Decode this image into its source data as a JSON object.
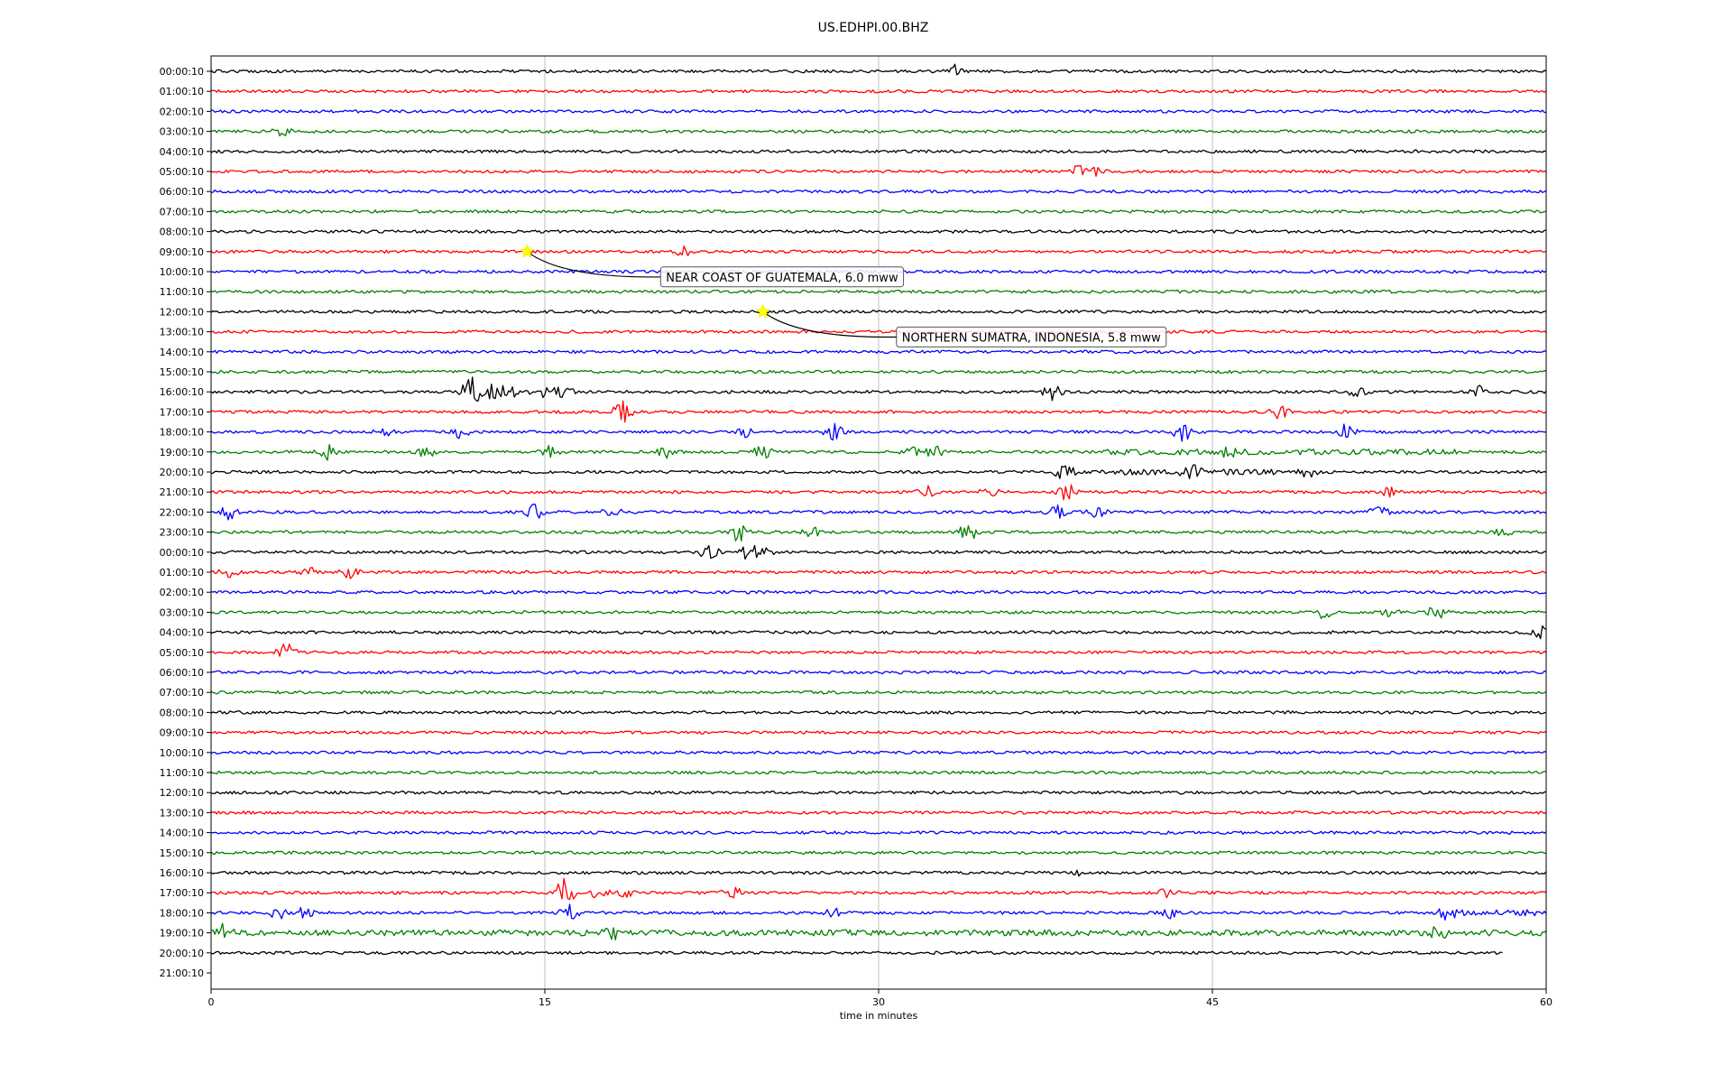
{
  "chart_data": {
    "type": "line",
    "title": "US.EDHPI.00.BHZ",
    "xlabel": "time in minutes",
    "ylabel": "",
    "xlim": [
      0,
      60
    ],
    "x_ticks": [
      "0",
      "15",
      "30",
      "45",
      "60"
    ],
    "x_tick_values": [
      0,
      15,
      30,
      45,
      60
    ],
    "grid": "vertical",
    "color_cycle": [
      "#000000",
      "#ff0000",
      "#0000ff",
      "#008000"
    ],
    "row_labels": [
      "00:00:10",
      "01:00:10",
      "02:00:10",
      "03:00:10",
      "04:00:10",
      "05:00:10",
      "06:00:10",
      "07:00:10",
      "08:00:10",
      "09:00:10",
      "10:00:10",
      "11:00:10",
      "12:00:10",
      "13:00:10",
      "14:00:10",
      "15:00:10",
      "16:00:10",
      "17:00:10",
      "18:00:10",
      "19:00:10",
      "20:00:10",
      "21:00:10",
      "22:00:10",
      "23:00:10",
      "00:00:10",
      "01:00:10",
      "02:00:10",
      "03:00:10",
      "04:00:10",
      "05:00:10",
      "06:00:10",
      "07:00:10",
      "08:00:10",
      "09:00:10",
      "10:00:10",
      "11:00:10",
      "12:00:10",
      "13:00:10",
      "14:00:10",
      "15:00:10",
      "16:00:10",
      "17:00:10",
      "18:00:10",
      "19:00:10",
      "20:00:10",
      "21:00:10"
    ],
    "trace_count": 45,
    "last_trace_end_minute": 58,
    "events": [
      {
        "row": 9,
        "minute": 14.2,
        "label": "NEAR COAST OF GUATEMALA, 6.0 mww",
        "marker_color": "#ffff00"
      },
      {
        "row": 12,
        "minute": 24.8,
        "label": "NORTHERN SUMATRA, INDONESIA, 5.8 mww",
        "marker_color": "#ffff00"
      }
    ],
    "bursts": [
      {
        "row": 0,
        "minute": 33.4,
        "amp": 0.6
      },
      {
        "row": 3,
        "minute": 3.2,
        "amp": 0.4
      },
      {
        "row": 5,
        "minute": 39.0,
        "amp": 0.6
      },
      {
        "row": 5,
        "minute": 40.0,
        "amp": 1.0
      },
      {
        "row": 9,
        "minute": 21.3,
        "amp": 0.4
      },
      {
        "row": 16,
        "minute": 11.7,
        "amp": 1.6
      },
      {
        "row": 16,
        "minute": 12.7,
        "amp": 0.8
      },
      {
        "row": 16,
        "minute": 13.3,
        "amp": 0.8
      },
      {
        "row": 16,
        "minute": 14.8,
        "amp": 0.6
      },
      {
        "row": 16,
        "minute": 15.8,
        "amp": 0.8
      },
      {
        "row": 16,
        "minute": 37.8,
        "amp": 0.8
      },
      {
        "row": 16,
        "minute": 51.5,
        "amp": 0.4
      },
      {
        "row": 16,
        "minute": 57.0,
        "amp": 0.6
      },
      {
        "row": 17,
        "minute": 18.5,
        "amp": 1.0
      },
      {
        "row": 17,
        "minute": 48.0,
        "amp": 0.7
      },
      {
        "row": 18,
        "minute": 7.8,
        "amp": 0.6
      },
      {
        "row": 18,
        "minute": 11.2,
        "amp": 0.7
      },
      {
        "row": 18,
        "minute": 24.0,
        "amp": 0.5
      },
      {
        "row": 18,
        "minute": 28.0,
        "amp": 0.7
      },
      {
        "row": 18,
        "minute": 43.7,
        "amp": 0.9
      },
      {
        "row": 18,
        "minute": 51.0,
        "amp": 0.8
      },
      {
        "row": 19,
        "minute": 5.2,
        "amp": 0.8
      },
      {
        "row": 19,
        "minute": 9.7,
        "amp": 0.5
      },
      {
        "row": 19,
        "minute": 15.2,
        "amp": 0.5
      },
      {
        "row": 19,
        "minute": 20.5,
        "amp": 0.5
      },
      {
        "row": 19,
        "minute": 24.8,
        "amp": 0.6
      },
      {
        "row": 19,
        "minute": 31.5,
        "amp": 0.5
      },
      {
        "row": 19,
        "minute": 32.5,
        "amp": 0.6
      },
      {
        "row": 19,
        "minute": 45.8,
        "amp": 0.6
      },
      {
        "row": 20,
        "minute": 38.4,
        "amp": 1.0
      },
      {
        "row": 20,
        "minute": 44.0,
        "amp": 0.6
      },
      {
        "row": 20,
        "minute": 49.3,
        "amp": 0.5
      },
      {
        "row": 21,
        "minute": 32.2,
        "amp": 0.6
      },
      {
        "row": 21,
        "minute": 35.0,
        "amp": 0.5
      },
      {
        "row": 21,
        "minute": 38.5,
        "amp": 0.9
      },
      {
        "row": 21,
        "minute": 53.0,
        "amp": 0.4
      },
      {
        "row": 22,
        "minute": 0.8,
        "amp": 0.7
      },
      {
        "row": 22,
        "minute": 14.5,
        "amp": 0.8
      },
      {
        "row": 22,
        "minute": 18.0,
        "amp": 0.5
      },
      {
        "row": 22,
        "minute": 38.0,
        "amp": 0.6
      },
      {
        "row": 22,
        "minute": 39.8,
        "amp": 0.5
      },
      {
        "row": 22,
        "minute": 52.5,
        "amp": 0.6
      },
      {
        "row": 23,
        "minute": 23.7,
        "amp": 0.9
      },
      {
        "row": 23,
        "minute": 27.0,
        "amp": 0.6
      },
      {
        "row": 23,
        "minute": 34.0,
        "amp": 0.9
      },
      {
        "row": 23,
        "minute": 58.0,
        "amp": 0.4
      },
      {
        "row": 24,
        "minute": 22.4,
        "amp": 0.8
      },
      {
        "row": 24,
        "minute": 24.2,
        "amp": 0.8
      },
      {
        "row": 24,
        "minute": 24.8,
        "amp": 0.6
      },
      {
        "row": 25,
        "minute": 0.8,
        "amp": 0.5
      },
      {
        "row": 25,
        "minute": 4.5,
        "amp": 0.4
      },
      {
        "row": 25,
        "minute": 6.2,
        "amp": 0.5
      },
      {
        "row": 27,
        "minute": 50.0,
        "amp": 0.6
      },
      {
        "row": 27,
        "minute": 53.0,
        "amp": 0.4
      },
      {
        "row": 27,
        "minute": 55.1,
        "amp": 0.7
      },
      {
        "row": 28,
        "minute": 59.8,
        "amp": 0.8
      },
      {
        "row": 29,
        "minute": 3.4,
        "amp": 0.9
      },
      {
        "row": 40,
        "minute": 39.3,
        "amp": 0.4
      },
      {
        "row": 41,
        "minute": 15.9,
        "amp": 1.4
      },
      {
        "row": 41,
        "minute": 17.5,
        "amp": 0.6
      },
      {
        "row": 41,
        "minute": 18.5,
        "amp": 0.5
      },
      {
        "row": 41,
        "minute": 23.4,
        "amp": 0.6
      },
      {
        "row": 41,
        "minute": 43.0,
        "amp": 0.5
      },
      {
        "row": 42,
        "minute": 3.0,
        "amp": 0.6
      },
      {
        "row": 42,
        "minute": 4.2,
        "amp": 0.5
      },
      {
        "row": 42,
        "minute": 16.1,
        "amp": 0.8
      },
      {
        "row": 42,
        "minute": 28.0,
        "amp": 0.5
      },
      {
        "row": 42,
        "minute": 43.0,
        "amp": 0.5
      },
      {
        "row": 42,
        "minute": 55.5,
        "amp": 0.6
      },
      {
        "row": 42,
        "minute": 59.0,
        "amp": 0.5
      },
      {
        "row": 43,
        "minute": 0.5,
        "amp": 0.7
      },
      {
        "row": 43,
        "minute": 18.0,
        "amp": 0.6
      },
      {
        "row": 43,
        "minute": 55.2,
        "amp": 0.6
      }
    ],
    "noisy_segments": [
      {
        "row": 19,
        "from": 40,
        "to": 56
      },
      {
        "row": 20,
        "from": 40,
        "to": 48
      },
      {
        "row": 42,
        "from": 55,
        "to": 59.5
      },
      {
        "row": 43,
        "from": 0,
        "to": 60
      }
    ]
  }
}
